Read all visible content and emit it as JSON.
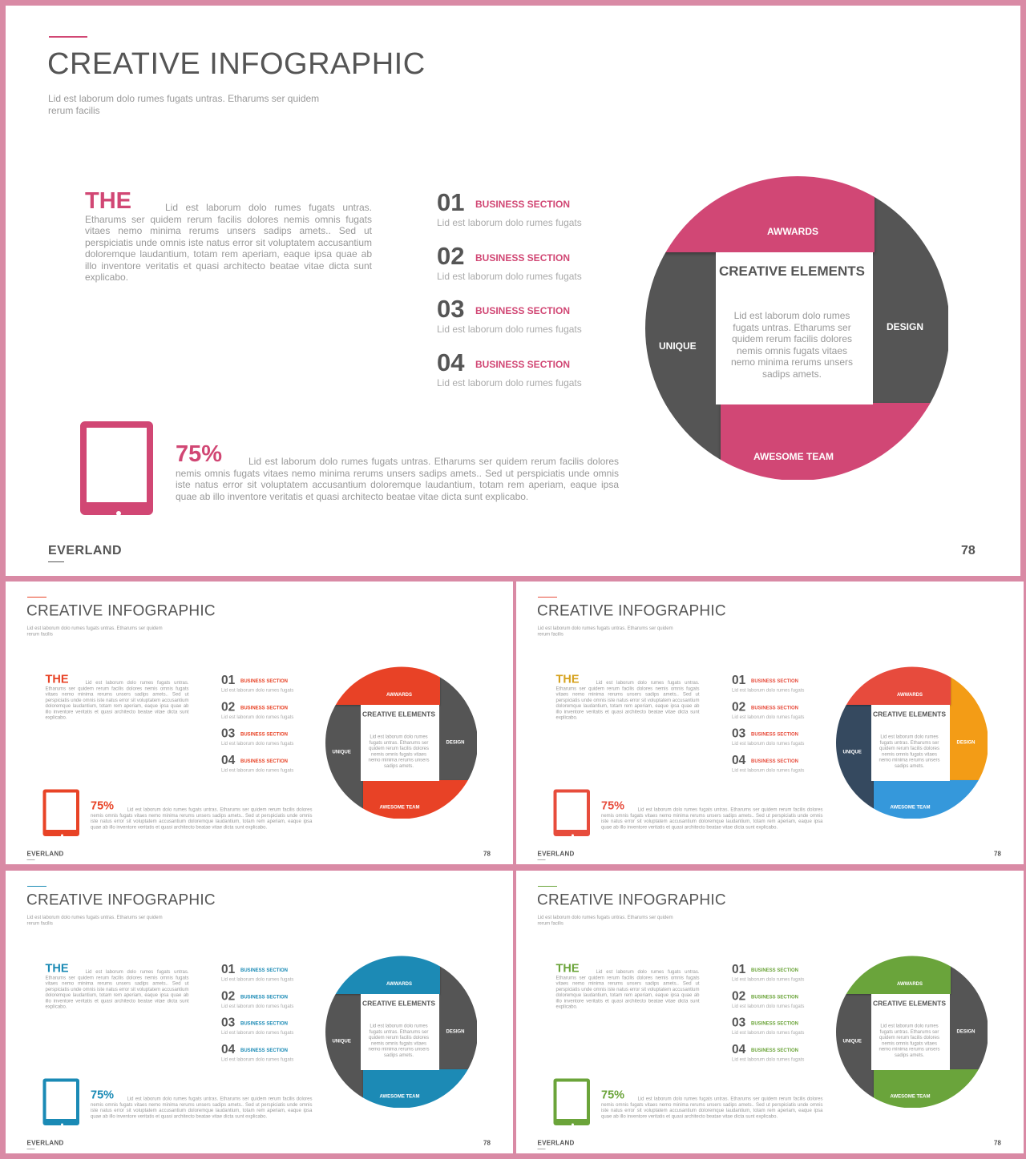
{
  "header": {
    "title": "CREATIVE INFOGRAPHIC",
    "subtitle": "Lid est laborum dolo rumes fugats untras. Etharums ser quidem rerum facilis"
  },
  "intro": {
    "heading": "THE",
    "body": "Lid est laborum dolo rumes fugats untras. Etharums ser quidem rerum facilis dolores nemis omnis fugats vitaes nemo minima rerums unsers sadips amets.. Sed ut perspiciatis unde omnis iste natus error sit voluptatem accusantium doloremque laudantium, totam rem aperiam, eaque ipsa quae ab illo inventore veritatis et quasi architecto beatae vitae dicta sunt explicabo."
  },
  "list": [
    {
      "num": "01",
      "label": "BUSINESS SECTION",
      "desc": "Lid est laborum dolo rumes fugats"
    },
    {
      "num": "02",
      "label": "BUSINESS SECTION",
      "desc": "Lid est laborum dolo rumes fugats"
    },
    {
      "num": "03",
      "label": "BUSINESS SECTION",
      "desc": "Lid est laborum dolo rumes fugats"
    },
    {
      "num": "04",
      "label": "BUSINESS SECTION",
      "desc": "Lid est laborum dolo rumes fugats"
    }
  ],
  "stat": {
    "icon": "tablet-icon",
    "value": "75%",
    "body": "Lid est laborum dolo rumes fugats untras. Etharums ser quidem rerum facilis dolores nemis omnis fugats vitaes nemo minima rerums unsers sadips amets.. Sed ut perspiciatis unde omnis iste natus error sit voluptatem accusantium doloremque laudantium, totam rem aperiam, eaque ipsa quae ab illo inventore veritatis et quasi architecto beatae vitae dicta sunt explicabo."
  },
  "circle": {
    "center_title": "CREATIVE ELEMENTS",
    "center_body": "Lid est laborum dolo rumes fugats untras. Etharums ser quidem rerum facilis dolores nemis omnis fugats vitaes nemo minima rerums unsers sadips amets.",
    "segments": {
      "top": "AWWARDS",
      "right": "DESIGN",
      "bottom": "AWESOME TEAM",
      "left": "UNIQUE"
    }
  },
  "footer": {
    "brand": "EVERLAND",
    "page": "78"
  },
  "variants": [
    {
      "accent": "#d14774",
      "top": "#d14774",
      "right": "#555555",
      "bottom": "#d14774",
      "left": "#555555",
      "the": "#d14774",
      "label": "#d14774"
    },
    {
      "accent": "#e84326",
      "top": "#e84326",
      "right": "#555555",
      "bottom": "#e84326",
      "left": "#555555",
      "the": "#e84326",
      "label": "#e84326"
    },
    {
      "accent": "#e74c3c",
      "top": "#e74c3c",
      "right": "#f39c12",
      "bottom": "#3498db",
      "left": "#34495e",
      "the": "#d6a21e",
      "label": "#e74c3c"
    },
    {
      "accent": "#1a8ab5",
      "top": "#1a8ab5",
      "right": "#555555",
      "bottom": "#1a8ab5",
      "left": "#555555",
      "the": "#1a8ab5",
      "label": "#1a8ab5"
    },
    {
      "accent": "#6ba43a",
      "top": "#6ba43a",
      "right": "#555555",
      "bottom": "#6ba43a",
      "left": "#555555",
      "the": "#6ba43a",
      "label": "#6ba43a"
    }
  ]
}
